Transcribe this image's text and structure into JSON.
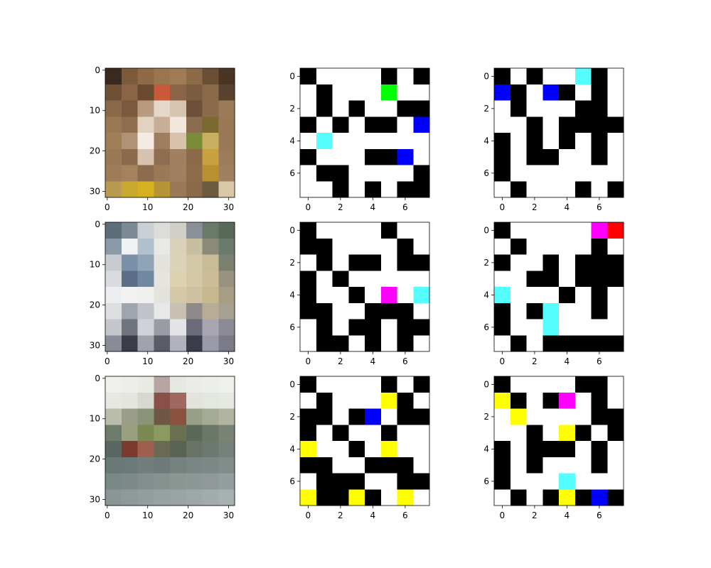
{
  "chart_data": {
    "type": "heatmap",
    "layout": {
      "rows": 3,
      "cols": 3
    },
    "palette": {
      "K": "#000000",
      "W": "#ffffff",
      "R": "#ff0000",
      "G": "#00ff00",
      "B": "#0000ff",
      "C": "#55ffff",
      "M": "#ff00ff",
      "Y": "#ffff00"
    },
    "panels": [
      {
        "kind": "photo",
        "depicts": "frog",
        "xlim": [
          -0.5,
          31.5
        ],
        "ylim": [
          31.5,
          -0.5
        ],
        "xticks": [
          0,
          10,
          20,
          30
        ],
        "yticks": [
          0,
          10,
          20,
          30
        ],
        "grid_colors": [
          [
            "#3a2a1e",
            "#7a5a3a",
            "#8f6b45",
            "#9a7650",
            "#a07c56",
            "#8c6a48",
            "#6a4f34",
            "#4a3424"
          ],
          [
            "#6e5036",
            "#8a6444",
            "#6a4a30",
            "#c85a3a",
            "#8a6446",
            "#7a5c40",
            "#8a6a48",
            "#5a4230"
          ],
          [
            "#8a6848",
            "#7a5a3e",
            "#b89a80",
            "#e6d8c8",
            "#d8c4ae",
            "#6e5038",
            "#8a6c4c",
            "#9a7a58"
          ],
          [
            "#9a7854",
            "#8e6e4e",
            "#e2d2c0",
            "#c8ae96",
            "#f0e6dc",
            "#8a6c4e",
            "#7a6a30",
            "#9a7a56"
          ],
          [
            "#a07e58",
            "#b09276",
            "#f4ece4",
            "#9e7e60",
            "#d8c2ac",
            "#7a8c3a",
            "#c6b060",
            "#9a7a56"
          ],
          [
            "#9a7a56",
            "#8a6a4c",
            "#d6c2ae",
            "#8e6e50",
            "#a08060",
            "#8a6a48",
            "#c8a040",
            "#9c7c58"
          ],
          [
            "#9e7c58",
            "#a4825c",
            "#8c6c4e",
            "#9a7a56",
            "#a08060",
            "#8c6c4a",
            "#b89030",
            "#a08060"
          ],
          [
            "#b89a50",
            "#c8a830",
            "#d6b020",
            "#b89438",
            "#9a7a56",
            "#8a6a4a",
            "#6e5a40",
            "#d8c8a8"
          ]
        ]
      },
      {
        "kind": "grid",
        "xlim": [
          -0.5,
          7.5
        ],
        "ylim": [
          7.5,
          -0.5
        ],
        "xticks": [
          0,
          2,
          4,
          6
        ],
        "yticks": [
          0,
          2,
          4,
          6
        ],
        "cells": [
          "KWWWWKWK",
          "WKWWWGWW",
          "WKWKWWKK",
          "KWKWKKWB",
          "WCWWWWWW",
          "KWWWKKBW",
          "WKKWWWWK",
          "WWKWKWKK"
        ]
      },
      {
        "kind": "grid",
        "xlim": [
          -0.5,
          7.5
        ],
        "ylim": [
          7.5,
          -0.5
        ],
        "xticks": [
          0,
          2,
          4,
          6
        ],
        "yticks": [
          0,
          2,
          4,
          6
        ],
        "cells": [
          "KWKWWCKW",
          "BKWBKWKW",
          "WKWWWKKW",
          "WWKWKKKK",
          "KWKWKWKW",
          "KWKKWWKW",
          "KWWWWWWW",
          "WKWWWKWK"
        ]
      },
      {
        "kind": "photo",
        "depicts": "truck",
        "xlim": [
          -0.5,
          31.5
        ],
        "ylim": [
          31.5,
          -0.5
        ],
        "xticks": [
          0,
          10,
          20,
          30
        ],
        "yticks": [
          0,
          10,
          20,
          30
        ],
        "grid_colors": [
          [
            "#5e6e78",
            "#7c8a94",
            "#c8d0d6",
            "#dcdcd8",
            "#cfcfc8",
            "#8a9098",
            "#6a7a6a",
            "#5a6a5a"
          ],
          [
            "#8a9aa8",
            "#f0f2f4",
            "#b0c0cc",
            "#e8e8e4",
            "#dad2b8",
            "#c8bea0",
            "#8a8a78",
            "#6a7a6a"
          ],
          [
            "#c8ccd0",
            "#7a90a8",
            "#90a4b8",
            "#e4e2dc",
            "#dcd4b8",
            "#d2c8a8",
            "#c8bc98",
            "#7a8070"
          ],
          [
            "#d8dce0",
            "#5a6e88",
            "#7088a0",
            "#e6e4de",
            "#dcd2b2",
            "#d4c8a6",
            "#ccbc98",
            "#9a9280"
          ],
          [
            "#eceef0",
            "#f2f2f2",
            "#f0f0ee",
            "#e4e2dc",
            "#d4c8a8",
            "#cec0a0",
            "#c8b890",
            "#a89c84"
          ],
          [
            "#dcdee2",
            "#a0a4ac",
            "#c0c4ca",
            "#e8e8e8",
            "#c8c0b0",
            "#8e8a88",
            "#b8ac94",
            "#a8a090"
          ],
          [
            "#c4c6cc",
            "#70747c",
            "#d0d2d8",
            "#9a9ca4",
            "#e4e4e8",
            "#6a6a78",
            "#a8a6b0",
            "#8c8a94"
          ],
          [
            "#8a8c98",
            "#3a3c48",
            "#a0a2ac",
            "#5a5c68",
            "#b0b2bc",
            "#3a3c4a",
            "#9a9aa8",
            "#7a7a88"
          ]
        ]
      },
      {
        "kind": "grid",
        "xlim": [
          -0.5,
          7.5
        ],
        "ylim": [
          7.5,
          -0.5
        ],
        "xticks": [
          0,
          2,
          4,
          6
        ],
        "yticks": [
          0,
          2,
          4,
          6
        ],
        "cells": [
          "KWWWWKWW",
          "KKWWWWKW",
          "WKWKKWKK",
          "KWKWWWWW",
          "KWWKWMWC",
          "KKWWKKKW",
          "WKWKKWKK",
          "WKKWKWKW"
        ]
      },
      {
        "kind": "grid",
        "xlim": [
          -0.5,
          7.5
        ],
        "ylim": [
          7.5,
          -0.5
        ],
        "xticks": [
          0,
          2,
          4,
          6
        ],
        "yticks": [
          0,
          2,
          4,
          6
        ],
        "cells": [
          "KWWWWWMR",
          "WKWWWWKW",
          "KWWKWKKK",
          "WWKKWKKK",
          "CWWWKWKW",
          "KWKCWWKW",
          "KWWCWWWW",
          "WKWKKKKK"
        ]
      },
      {
        "kind": "photo",
        "depicts": "dump truck",
        "xlim": [
          -0.5,
          31.5
        ],
        "ylim": [
          31.5,
          -0.5
        ],
        "xticks": [
          0,
          10,
          20,
          30
        ],
        "yticks": [
          0,
          10,
          20,
          30
        ],
        "grid_colors": [
          [
            "#eef0ec",
            "#eceeea",
            "#e8eae4",
            "#b8a4a0",
            "#e6e8e2",
            "#eaece8",
            "#eceeea",
            "#eef0ec"
          ],
          [
            "#e6e8e2",
            "#e4e6de",
            "#d8d8d0",
            "#8a5048",
            "#a06860",
            "#e2e4dc",
            "#e4e6e0",
            "#e6e8e2"
          ],
          [
            "#b8bcaa",
            "#9a9e88",
            "#8a9478",
            "#6e5844",
            "#8a5040",
            "#98a088",
            "#a4aa94",
            "#b0b4a0"
          ],
          [
            "#6e7a6a",
            "#9aa080",
            "#7a8a52",
            "#8a9a60",
            "#6a7050",
            "#5a6a58",
            "#6a7868",
            "#7a8476"
          ],
          [
            "#5a6662",
            "#7a3a30",
            "#a06050",
            "#6a6a52",
            "#5a6254",
            "#6a7268",
            "#6e7872",
            "#74807a"
          ],
          [
            "#6a7876",
            "#6a7a78",
            "#727c7a",
            "#6e7a7a",
            "#768280",
            "#7a8684",
            "#7c8886",
            "#808c8a"
          ],
          [
            "#7a8886",
            "#7e8a8a",
            "#828e8e",
            "#86928e",
            "#8a9692",
            "#8c9896",
            "#90989a",
            "#949e9e"
          ],
          [
            "#8a9696",
            "#8e9a9a",
            "#929e9e",
            "#96a2a2",
            "#9aa4a4",
            "#9ea8a8",
            "#a2acac",
            "#a6b0b0"
          ]
        ]
      },
      {
        "kind": "grid",
        "xlim": [
          -0.5,
          7.5
        ],
        "ylim": [
          7.5,
          -0.5
        ],
        "xticks": [
          0,
          2,
          4,
          6
        ],
        "yticks": [
          0,
          2,
          4,
          6
        ],
        "cells": [
          "KWWWWKWK",
          "WKWWWYKW",
          "KKWKBWKK",
          "KWKWWKWW",
          "YWWKWYWW",
          "KKWWKKKW",
          "WKKKWWKK",
          "YKKYKWYW"
        ]
      },
      {
        "kind": "grid",
        "xlim": [
          -0.5,
          7.5
        ],
        "ylim": [
          7.5,
          -0.5
        ],
        "xticks": [
          0,
          2,
          4,
          6
        ],
        "yticks": [
          0,
          2,
          4,
          6
        ],
        "cells": [
          "KWWWWKKW",
          "YKWKMWKW",
          "WYWWWWKK",
          "WWKWYKWK",
          "KWKKKWKW",
          "KWKWWWKW",
          "KWWWCWWW",
          "WKWKYKBK"
        ]
      }
    ]
  }
}
